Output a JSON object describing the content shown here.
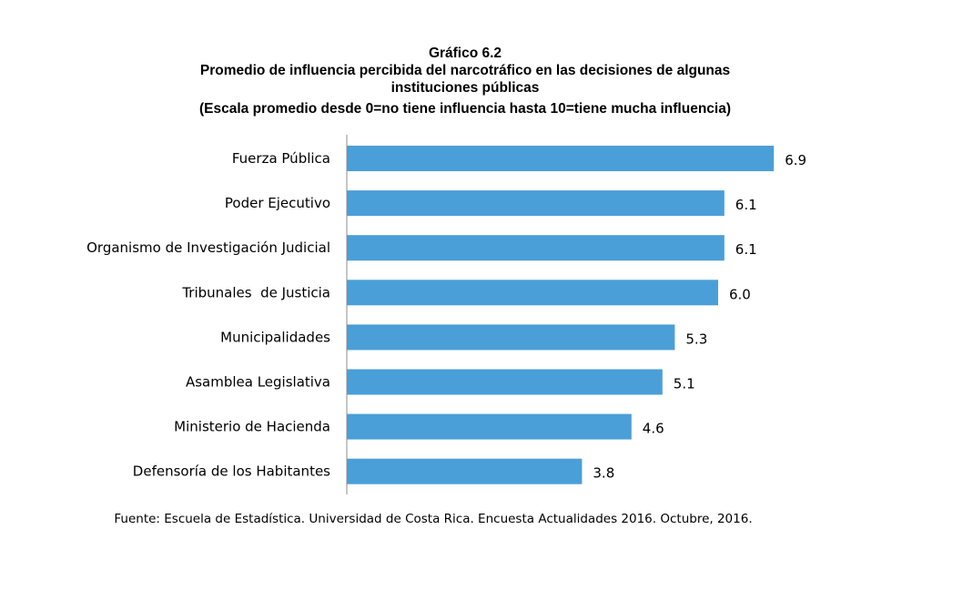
{
  "chart_data": {
    "type": "bar",
    "orientation": "horizontal",
    "title": "Gráfico 6.2",
    "subtitle_lines": [
      "Promedio de influencia percibida del narcotráfico en las decisiones de algunas",
      "instituciones públicas",
      "(Escala promedio desde 0=no tiene influencia hasta 10=tiene mucha influencia)"
    ],
    "categories": [
      "Fuerza Pública",
      "Poder Ejecutivo",
      "Organismo de Investigación Judicial",
      "Tribunales  de Justicia",
      "Municipalidades",
      "Asamblea Legislativa",
      "Ministerio de Hacienda",
      "Defensoría de los Habitantes"
    ],
    "values": [
      6.9,
      6.1,
      6.1,
      6.0,
      5.3,
      5.1,
      4.6,
      3.8
    ],
    "value_labels": [
      "6.9",
      "6.1",
      "6.1",
      "6.0",
      "5.3",
      "5.1",
      "4.6",
      "3.8"
    ],
    "xlim": [
      0,
      10
    ],
    "grid": false,
    "bar_color": "#4a9fd8",
    "source": "Fuente: Escuela de Estadística. Universidad de Costa Rica. Encuesta Actualidades 2016. Octubre, 2016."
  }
}
